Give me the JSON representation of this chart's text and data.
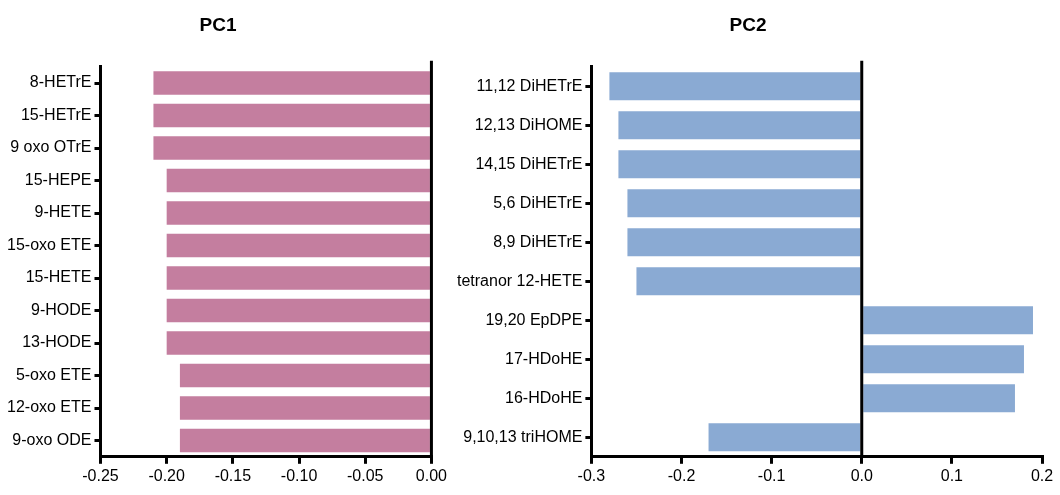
{
  "chart_data": [
    {
      "type": "bar",
      "orientation": "horizontal",
      "title": "PC1",
      "categories": [
        "8-HETrE",
        "15-HETrE",
        "9 oxo OTrE",
        "15-HEPE",
        "9-HETE",
        "15-oxo ETE",
        "15-HETE",
        "9-HODE",
        "13-HODE",
        "5-oxo ETE",
        "12-oxo ETE",
        "9-oxo ODE"
      ],
      "values": [
        -0.21,
        -0.21,
        -0.21,
        -0.2,
        -0.2,
        -0.2,
        -0.2,
        -0.2,
        -0.2,
        -0.19,
        -0.19,
        -0.19
      ],
      "color": "#c47e9f",
      "xlim": [
        -0.25,
        0
      ],
      "xticks": [
        -0.25,
        {
          "value": -0.2,
          "label": "-0.20"
        },
        -0.15,
        {
          "value": -0.1,
          "label": "-0.10"
        },
        -0.05,
        {
          "value": 0,
          "label": "0.00"
        }
      ],
      "ref_lines": [
        {
          "axis": "x",
          "value": 0
        }
      ],
      "grid": false,
      "legend": false
    },
    {
      "type": "bar",
      "orientation": "horizontal",
      "title": "PC2",
      "categories": [
        "11,12 DiHETrE",
        "12,13 DiHOME",
        "14,15 DiHETrE",
        "5,6 DiHETrE",
        "8,9 DiHETrE",
        "tetranor 12-HETE",
        "19,20 EpDPE",
        "17-HDoHE",
        "16-HDoHE",
        "9,10,13 triHOME"
      ],
      "values": [
        -0.28,
        -0.27,
        -0.27,
        -0.26,
        -0.26,
        -0.25,
        0.19,
        0.18,
        0.17,
        -0.17
      ],
      "color": "#8aaad3",
      "xlim": [
        -0.3,
        0.2
      ],
      "xticks": [
        -0.3,
        -0.2,
        -0.1,
        {
          "value": 0,
          "label": "0.0"
        },
        0.1,
        0.2
      ],
      "ref_lines": [
        {
          "axis": "x",
          "value": 0
        }
      ],
      "grid": false,
      "legend": false
    }
  ]
}
